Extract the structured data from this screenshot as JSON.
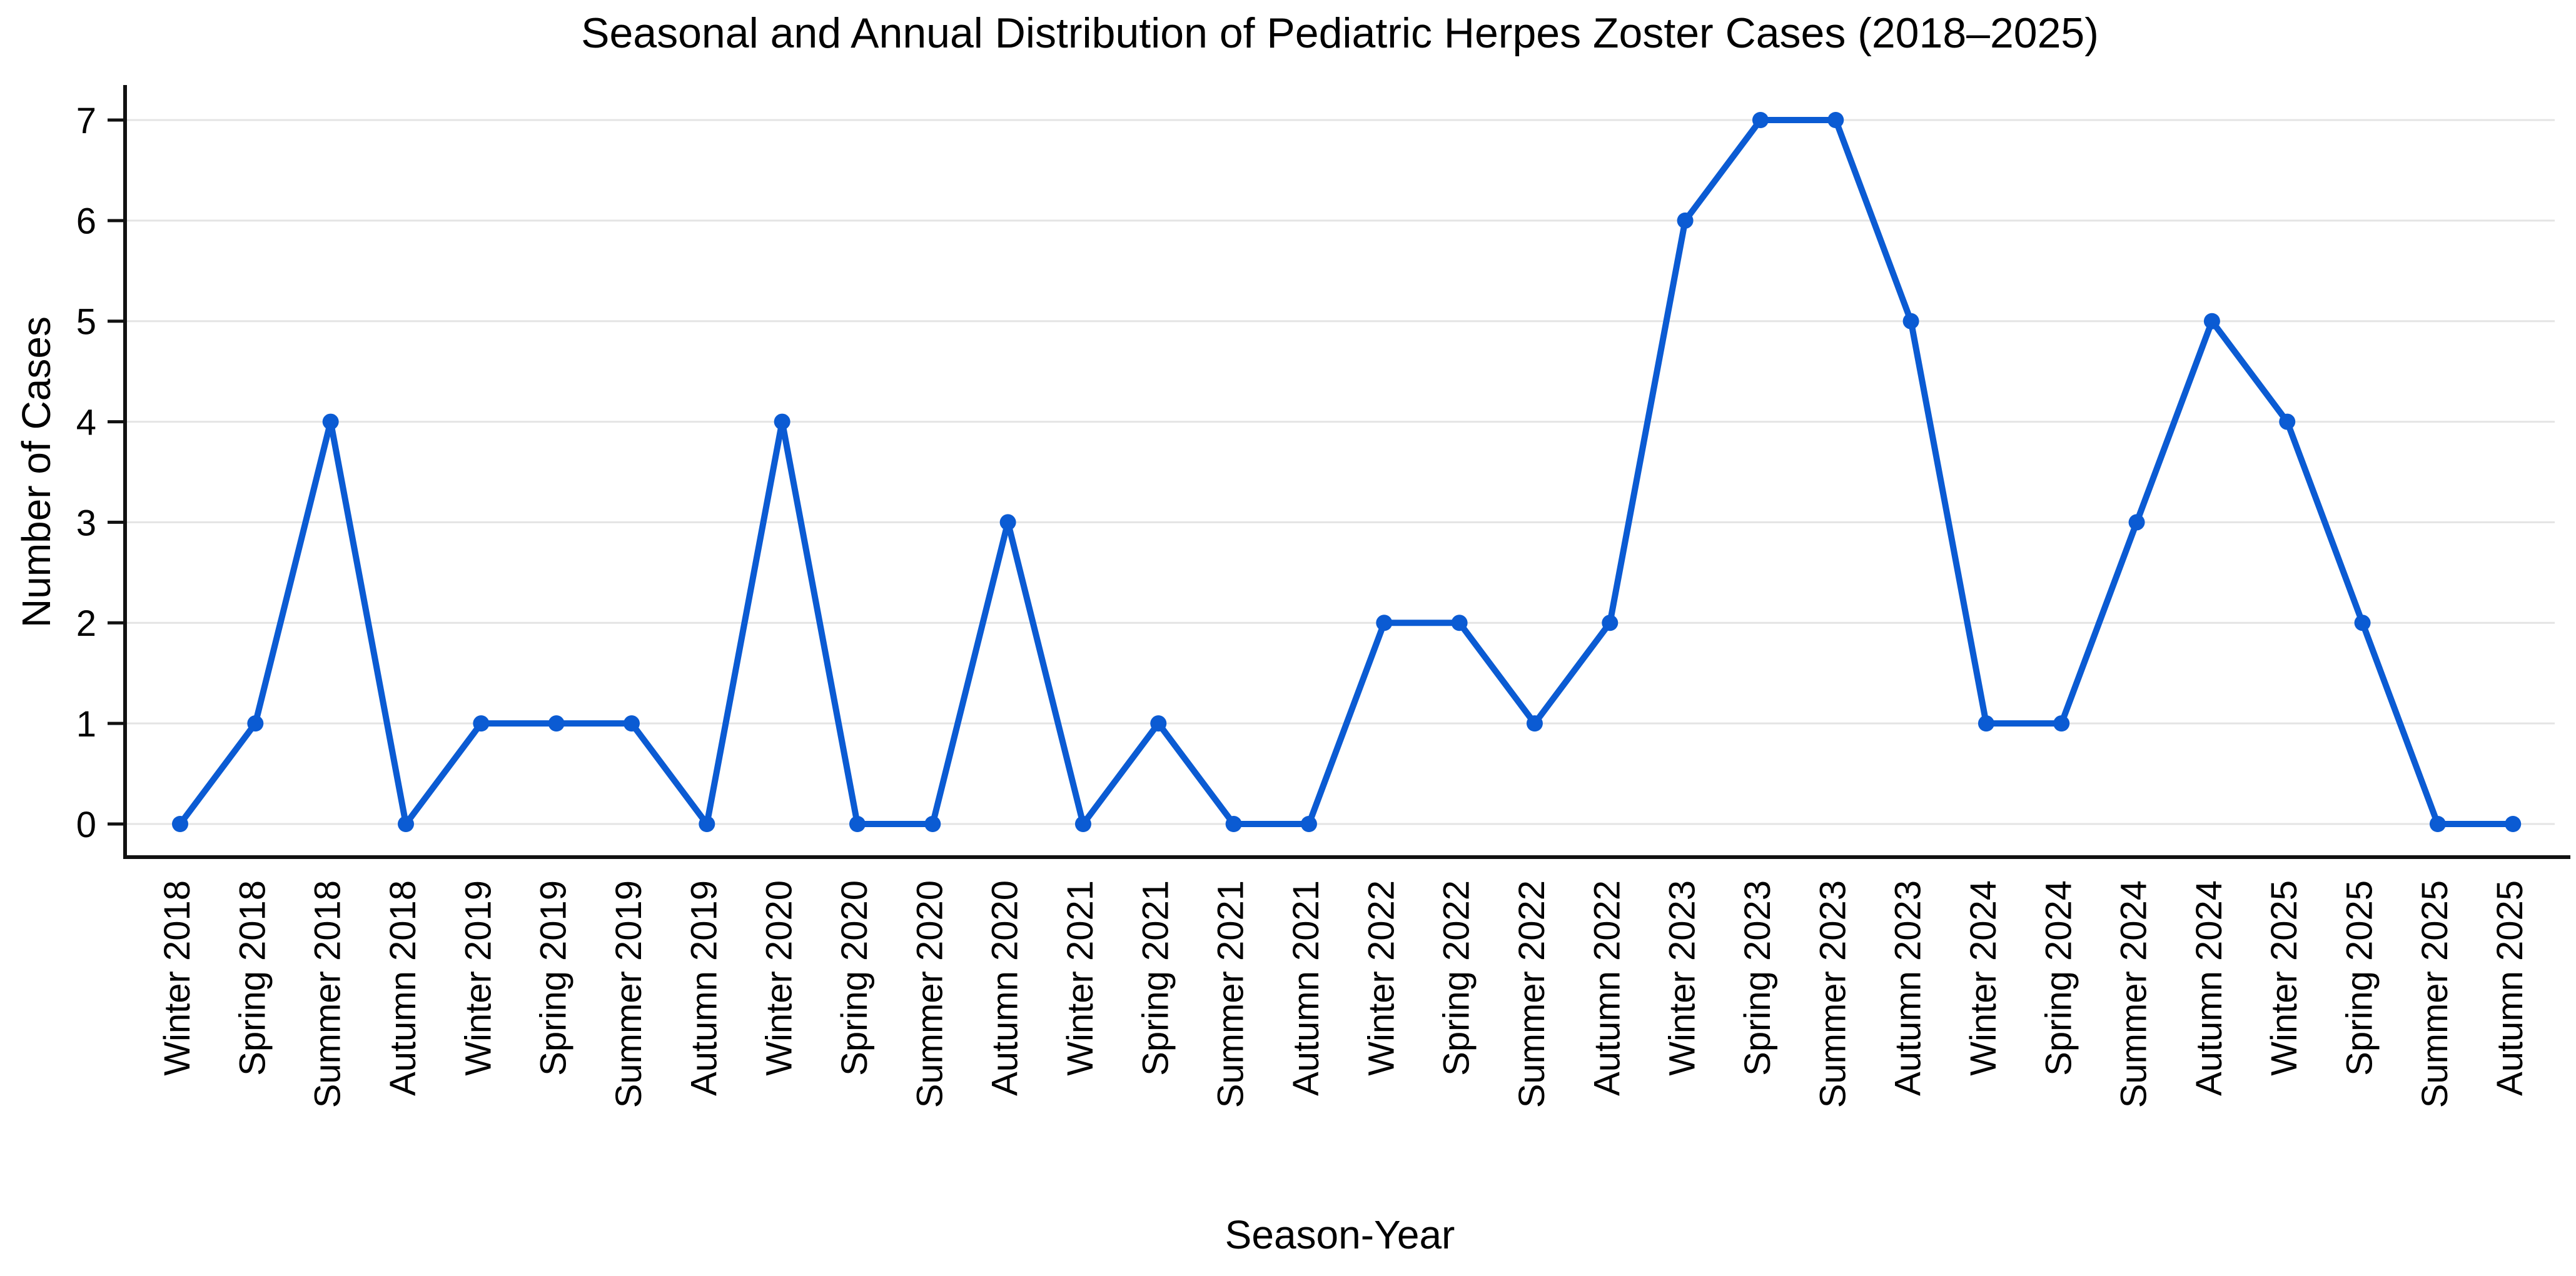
{
  "chart_data": {
    "type": "line",
    "title": "Seasonal and Annual Distribution of Pediatric Herpes Zoster Cases (2018–2025)",
    "xlabel": "Season-Year",
    "ylabel": "Number of Cases",
    "categories": [
      "Winter 2018",
      "Spring 2018",
      "Summer 2018",
      "Autumn 2018",
      "Winter 2019",
      "Spring 2019",
      "Summer 2019",
      "Autumn 2019",
      "Winter 2020",
      "Spring 2020",
      "Summer 2020",
      "Autumn 2020",
      "Winter 2021",
      "Spring 2021",
      "Summer 2021",
      "Autumn 2021",
      "Winter 2022",
      "Spring 2022",
      "Summer 2022",
      "Autumn 2022",
      "Winter 2023",
      "Spring 2023",
      "Summer 2023",
      "Autumn 2023",
      "Winter 2024",
      "Spring 2024",
      "Summer 2024",
      "Autumn 2024",
      "Winter 2025",
      "Spring 2025",
      "Summer 2025",
      "Autumn 2025"
    ],
    "values": [
      0,
      1,
      4,
      0,
      1,
      1,
      1,
      0,
      4,
      0,
      0,
      3,
      0,
      1,
      0,
      0,
      2,
      2,
      1,
      2,
      6,
      7,
      7,
      5,
      1,
      1,
      3,
      5,
      4,
      2,
      0,
      0
    ],
    "ylim": [
      0,
      7
    ],
    "yticks": [
      0,
      1,
      2,
      3,
      4,
      5,
      6,
      7
    ],
    "grid": true,
    "marker": "circle",
    "colors": {
      "line": "#0b5bd3",
      "marker": "#0b5bd3",
      "grid": "#e4e4e4",
      "axis": "#111111",
      "text": "#000000",
      "background": "#ffffff"
    }
  }
}
